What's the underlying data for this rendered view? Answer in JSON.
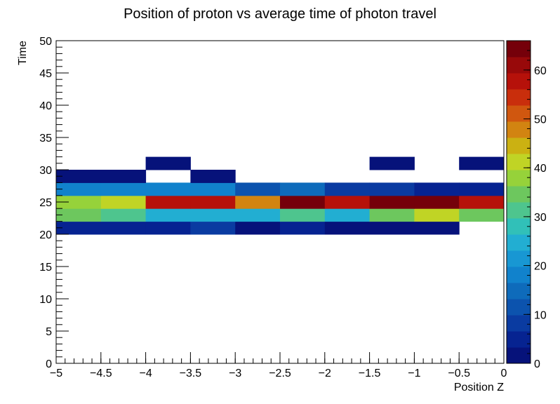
{
  "chart_data": {
    "type": "heatmap",
    "title": "Position of proton vs average time of photon travel",
    "xlabel": "Position Z",
    "ylabel": "Time",
    "xlim": [
      -5,
      0
    ],
    "ylim": [
      0,
      50
    ],
    "x_ticks": [
      -5,
      -4.5,
      -4,
      -3.5,
      -3,
      -2.5,
      -2,
      -1.5,
      -1,
      -0.5,
      0
    ],
    "x_tick_labels": [
      "−5",
      "−4.5",
      "−4",
      "−3.5",
      "−3",
      "−2.5",
      "−2",
      "−1.5",
      "−1",
      "−0.5",
      "0"
    ],
    "y_ticks": [
      0,
      5,
      10,
      15,
      20,
      25,
      30,
      35,
      40,
      45,
      50
    ],
    "y_tick_labels": [
      "0",
      "5",
      "10",
      "15",
      "20",
      "25",
      "30",
      "35",
      "40",
      "45",
      "50"
    ],
    "x_bin_edges": [
      -5,
      -4.5,
      -4,
      -3.5,
      -3,
      -2.5,
      -2,
      -1.5,
      -1,
      -0.5,
      0
    ],
    "y_bin_edges": [
      20,
      22,
      24,
      26,
      28,
      30,
      32
    ],
    "counts": [
      [
        5,
        5,
        6,
        8,
        2,
        5,
        3,
        3,
        2,
        0
      ],
      [
        33,
        30,
        24,
        24,
        24,
        30,
        24,
        36,
        42,
        36
      ],
      [
        39,
        42,
        57,
        57,
        48,
        66,
        57,
        66,
        63,
        57
      ],
      [
        17,
        17,
        19,
        19,
        11,
        15,
        8,
        8,
        6,
        6
      ],
      [
        3,
        3,
        0,
        3,
        0,
        0,
        0,
        0,
        0,
        0
      ],
      [
        0,
        0,
        2,
        0,
        0,
        0,
        0,
        2,
        0,
        2
      ]
    ],
    "colorbar": {
      "min": 0,
      "max": 66,
      "levels": 20,
      "ticks": [
        0,
        10,
        20,
        30,
        40,
        50,
        60
      ],
      "tick_labels": [
        "0",
        "10",
        "20",
        "30",
        "40",
        "50",
        "60"
      ],
      "colors": [
        "#06127a",
        "#062391",
        "#0a3ba1",
        "#0c53ae",
        "#0e6bbb",
        "#1182cc",
        "#1897d3",
        "#22aed2",
        "#31c0b8",
        "#4ec58e",
        "#6dc75e",
        "#96d23a",
        "#c0d425",
        "#cbb112",
        "#d28411",
        "#d0570f",
        "#c92e0c",
        "#b6110a",
        "#98090a",
        "#75000a"
      ]
    }
  }
}
